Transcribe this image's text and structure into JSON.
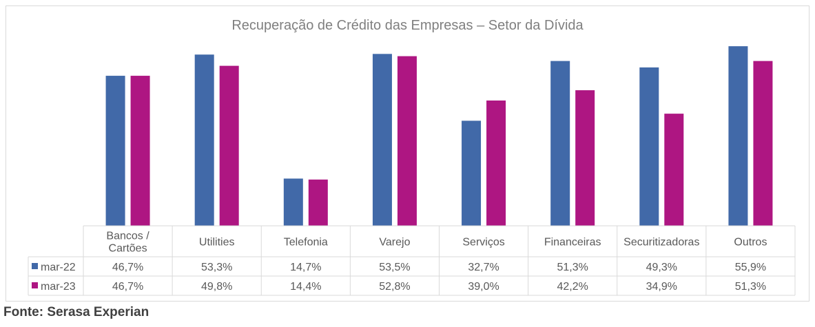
{
  "chart_data": {
    "type": "bar",
    "title": "Recuperação de Crédito das Empresas – Setor da Dívida",
    "categories": [
      "Bancos / Cartões",
      "Utilities",
      "Telefonia",
      "Varejo",
      "Serviços",
      "Financeiras",
      "Securitizadoras",
      "Outros"
    ],
    "category_lines": [
      [
        "Bancos /",
        "Cartões"
      ],
      [
        "Utilities"
      ],
      [
        "Telefonia"
      ],
      [
        "Varejo"
      ],
      [
        "Serviços"
      ],
      [
        "Financeiras"
      ],
      [
        "Securitizadoras"
      ],
      [
        "Outros"
      ]
    ],
    "series": [
      {
        "name": "mar-22",
        "color": "#4169a8",
        "values": [
          46.7,
          53.3,
          14.7,
          53.5,
          32.7,
          51.3,
          49.3,
          55.9
        ],
        "labels": [
          "46,7%",
          "53,3%",
          "14,7%",
          "53,5%",
          "32,7%",
          "51,3%",
          "49,3%",
          "55,9%"
        ]
      },
      {
        "name": "mar-23",
        "color": "#ae1682",
        "values": [
          46.7,
          49.8,
          14.4,
          52.8,
          39.0,
          42.2,
          34.9,
          51.3
        ],
        "labels": [
          "46,7%",
          "49,8%",
          "14,4%",
          "52,8%",
          "39,0%",
          "42,2%",
          "34,9%",
          "51,3%"
        ]
      }
    ],
    "ylim": [
      0,
      60
    ],
    "legend": "data-table",
    "grid": false
  },
  "source_text": "Fonte: Serasa Experian"
}
